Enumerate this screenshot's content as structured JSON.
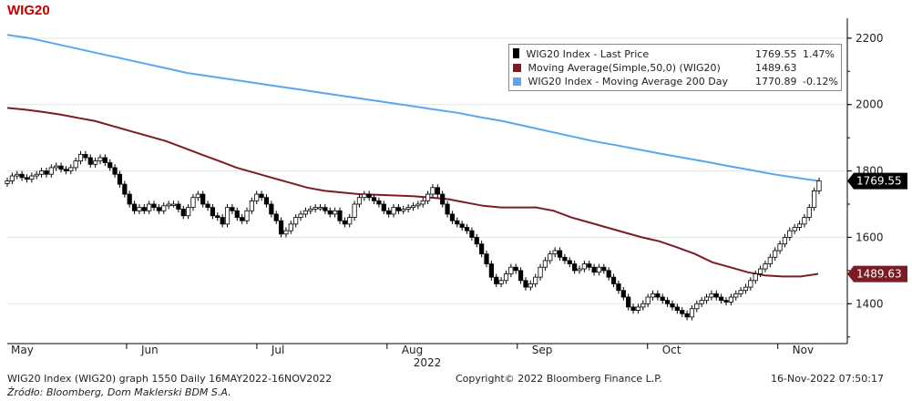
{
  "title": "WIG20",
  "legend": [
    {
      "name": "WIG20 Index - Last Price",
      "value": "1769.55",
      "change": "1.47%",
      "color": "#000000",
      "icon": "candle-icon"
    },
    {
      "name": "Moving Average(Simple,50,0) (WIG20)",
      "value": "1489.63",
      "change": "",
      "color": "#7b1c24"
    },
    {
      "name": "WIG20 Index - Moving Average 200 Day",
      "value": "1770.89",
      "change": "-0.12%",
      "color": "#5aa7ec"
    }
  ],
  "footer": {
    "left": "WIG20 Index (WIG20) graph 1550  Daily 16MAY2022-16NOV2022",
    "center": "Copyright© 2022 Bloomberg Finance L.P.",
    "right": "16-Nov-2022 07:50:17",
    "source": "Źródło: Bloomberg, Dom Maklerski BDM S.A."
  },
  "chart_data": {
    "type": "line",
    "x_axis": {
      "ticks": [
        "May",
        "Jun",
        "Jul",
        "Aug",
        "Sep",
        "Oct",
        "Nov"
      ],
      "year_label": "2022"
    },
    "y_axis": {
      "ticks": [
        1400,
        1600,
        1800,
        2000,
        2200
      ],
      "range": [
        1280,
        2260
      ],
      "position": "right"
    },
    "value_labels": [
      {
        "series": "WIG20 Index - Last Price",
        "label": "1769.55"
      },
      {
        "series": "Moving Average(Simple,50,0) (WIG20)",
        "label": "1489.63"
      }
    ],
    "candles_close": [
      1770,
      1785,
      1790,
      1780,
      1775,
      1785,
      1790,
      1800,
      1790,
      1810,
      1815,
      1805,
      1800,
      1810,
      1830,
      1850,
      1840,
      1820,
      1830,
      1840,
      1825,
      1810,
      1790,
      1760,
      1730,
      1700,
      1680,
      1690,
      1680,
      1700,
      1690,
      1680,
      1695,
      1700,
      1700,
      1685,
      1665,
      1690,
      1720,
      1730,
      1700,
      1690,
      1665,
      1660,
      1640,
      1690,
      1680,
      1660,
      1650,
      1680,
      1710,
      1730,
      1720,
      1700,
      1670,
      1650,
      1610,
      1620,
      1640,
      1660,
      1670,
      1680,
      1685,
      1690,
      1690,
      1680,
      1670,
      1680,
      1650,
      1640,
      1660,
      1700,
      1720,
      1730,
      1720,
      1710,
      1700,
      1680,
      1670,
      1690,
      1680,
      1685,
      1690,
      1695,
      1700,
      1710,
      1730,
      1750,
      1730,
      1700,
      1670,
      1650,
      1640,
      1630,
      1620,
      1600,
      1580,
      1550,
      1520,
      1480,
      1460,
      1470,
      1490,
      1510,
      1500,
      1470,
      1450,
      1460,
      1480,
      1510,
      1530,
      1550,
      1560,
      1540,
      1530,
      1520,
      1500,
      1505,
      1520,
      1510,
      1495,
      1510,
      1500,
      1480,
      1460,
      1440,
      1420,
      1390,
      1380,
      1390,
      1400,
      1420,
      1430,
      1420,
      1410,
      1400,
      1390,
      1380,
      1370,
      1360,
      1385,
      1400,
      1410,
      1420,
      1430,
      1420,
      1410,
      1405,
      1420,
      1430,
      1440,
      1450,
      1470,
      1490,
      1505,
      1520,
      1540,
      1560,
      1580,
      1600,
      1620,
      1630,
      1640,
      1660,
      1690,
      1740,
      1770
    ],
    "series": [
      {
        "name": "Moving Average(Simple,50,0) (WIG20)",
        "color": "#7b1c24",
        "values": [
          1990,
          1985,
          1978,
          1970,
          1960,
          1950,
          1935,
          1920,
          1905,
          1890,
          1870,
          1850,
          1830,
          1810,
          1795,
          1780,
          1765,
          1750,
          1740,
          1735,
          1730,
          1728,
          1726,
          1724,
          1720,
          1715,
          1705,
          1695,
          1690,
          1690,
          1690,
          1680,
          1660,
          1645,
          1630,
          1615,
          1600,
          1588,
          1570,
          1550,
          1525,
          1510,
          1495,
          1485,
          1482,
          1482,
          1490
        ]
      },
      {
        "name": "WIG20 Index - Moving Average 200 Day",
        "color": "#5aa7ec",
        "values": [
          2210,
          2200,
          2185,
          2170,
          2155,
          2140,
          2125,
          2110,
          2095,
          2085,
          2075,
          2065,
          2055,
          2045,
          2035,
          2025,
          2015,
          2005,
          1995,
          1985,
          1975,
          1962,
          1950,
          1935,
          1920,
          1905,
          1890,
          1878,
          1865,
          1852,
          1840,
          1828,
          1815,
          1803,
          1790,
          1780,
          1770
        ]
      }
    ]
  }
}
